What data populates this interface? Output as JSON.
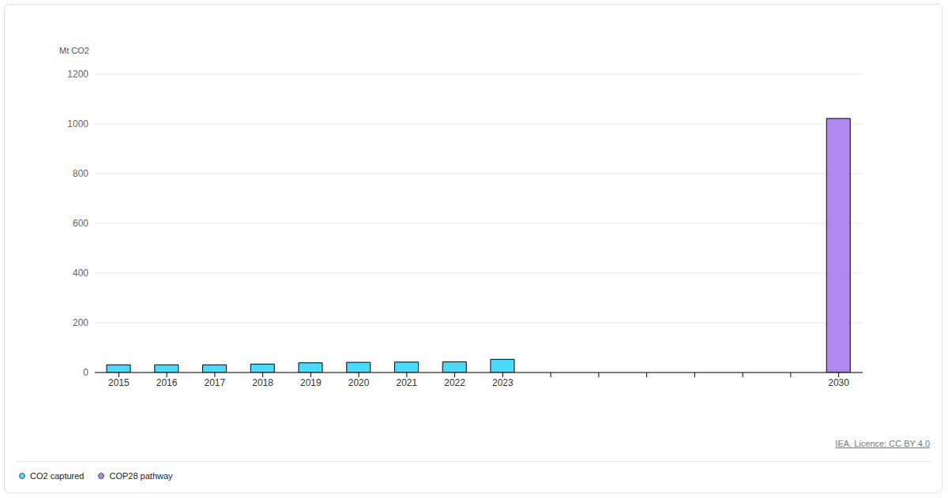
{
  "chart_data": {
    "type": "bar",
    "y_label": "Mt CO2",
    "source": "IEA. Licence: CC BY 4.0",
    "categories": [
      "2015",
      "2016",
      "2017",
      "2018",
      "2019",
      "2020",
      "2021",
      "2022",
      "2023",
      null,
      null,
      null,
      null,
      null,
      null,
      "2030"
    ],
    "series": [
      {
        "name": "CO2 captured",
        "color": "#4dd9fa",
        "values": [
          31,
          31,
          31,
          34,
          39,
          41,
          42,
          43,
          53,
          null,
          null,
          null,
          null,
          null,
          null,
          null
        ]
      },
      {
        "name": "COP28 pathway",
        "color": "#b088ef",
        "values": [
          null,
          null,
          null,
          null,
          null,
          null,
          null,
          null,
          null,
          null,
          null,
          null,
          null,
          null,
          null,
          1022
        ]
      }
    ],
    "ylim": [
      0,
      1200
    ],
    "yticks": [
      0,
      200,
      400,
      600,
      800,
      1000,
      1200
    ],
    "grid": true,
    "legend": "bottom left"
  }
}
